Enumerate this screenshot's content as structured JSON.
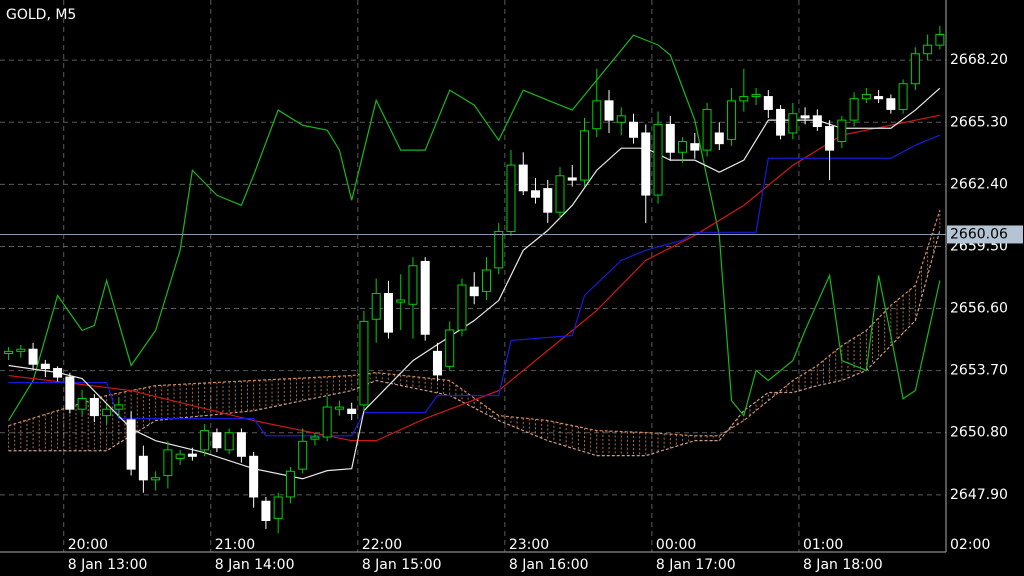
{
  "chart_data": {
    "type": "candlestick",
    "title": "GOLD, M5",
    "xlim": [
      -0.7,
      76.5
    ],
    "ylim": [
      2645.23,
      2671.01
    ],
    "yticks": [
      {
        "value": 2668.2,
        "label": "2668.20"
      },
      {
        "value": 2665.3,
        "label": "2665.30"
      },
      {
        "value": 2662.4,
        "label": "2662.40"
      },
      {
        "value": 2659.5,
        "label": "2659.50"
      },
      {
        "value": 2656.6,
        "label": "2656.60"
      },
      {
        "value": 2653.7,
        "label": "2653.70"
      },
      {
        "value": 2650.8,
        "label": "2650.80"
      },
      {
        "value": 2647.9,
        "label": "2647.90"
      }
    ],
    "xticks": [
      {
        "value": 4.5,
        "label": "20:00"
      },
      {
        "value": 16.5,
        "label": "21:00"
      },
      {
        "value": 28.5,
        "label": "22:00"
      },
      {
        "value": 40.5,
        "label": "23:00"
      },
      {
        "value": 52.5,
        "label": "00:00"
      },
      {
        "value": 64.5,
        "label": "01:00"
      },
      {
        "value": 76.5,
        "label": "02:00"
      }
    ],
    "xticks_date": [
      {
        "value": 4.5,
        "label": "8 Jan 13:00"
      },
      {
        "value": 16.5,
        "label": "8 Jan 14:00"
      },
      {
        "value": 28.5,
        "label": "8 Jan 15:00"
      },
      {
        "value": 40.5,
        "label": "8 Jan 16:00"
      },
      {
        "value": 52.5,
        "label": "8 Jan 17:00"
      },
      {
        "value": 64.5,
        "label": "8 Jan 18:00"
      }
    ],
    "grid": true,
    "current_price": 2660.06,
    "up_color": "#00d000",
    "down_color": "#ffffff",
    "candles": {
      "open": [
        2654.5,
        2654.6,
        2654.7,
        2654.0,
        2653.8,
        2653.4,
        2651.9,
        2652.4,
        2651.6,
        2651.9,
        2651.4,
        2649.7,
        2648.6,
        2648.8,
        2649.6,
        2649.8,
        2650.0,
        2650.8,
        2650.0,
        2650.8,
        2649.7,
        2647.6,
        2646.8,
        2647.8,
        2649.1,
        2650.5,
        2650.6,
        2651.9,
        2651.9,
        2652.1,
        2656.1,
        2657.3,
        2656.9,
        2656.8,
        2658.8,
        2654.6,
        2653.9,
        2655.6,
        2657.6,
        2657.4,
        2658.5,
        2660.2,
        2663.3,
        2662.1,
        2662.2,
        2661.1,
        2662.7,
        2662.6,
        2665.0,
        2666.3,
        2665.3,
        2665.3,
        2664.8,
        2661.9,
        2665.2,
        2663.9,
        2664.3,
        2664.0,
        2664.8,
        2664.5,
        2666.3,
        2666.5,
        2666.5,
        2665.9,
        2664.8,
        2665.6,
        2665.6,
        2665.1,
        2664.4,
        2665.4,
        2666.4,
        2666.5,
        2666.4,
        2665.9,
        2667.1,
        2668.5,
        2668.9
      ],
      "high": [
        2654.8,
        2654.9,
        2655.0,
        2654.2,
        2653.9,
        2653.6,
        2652.8,
        2652.6,
        2652.1,
        2652.4,
        2651.8,
        2650.2,
        2649.0,
        2650.4,
        2650.0,
        2650.1,
        2651.2,
        2651.0,
        2651.0,
        2651.0,
        2649.9,
        2647.8,
        2648.0,
        2649.2,
        2651.0,
        2650.8,
        2652.5,
        2652.3,
        2652.2,
        2656.5,
        2658.0,
        2657.9,
        2658.2,
        2659.0,
        2659.0,
        2655.0,
        2656.0,
        2658.0,
        2658.3,
        2659.0,
        2660.6,
        2664.0,
        2663.9,
        2662.7,
        2662.6,
        2663.2,
        2663.3,
        2665.5,
        2667.8,
        2666.8,
        2666.0,
        2665.7,
        2665.2,
        2665.8,
        2665.6,
        2664.6,
        2664.8,
        2666.2,
        2665.3,
        2666.9,
        2667.8,
        2666.9,
        2666.8,
        2666.1,
        2666.2,
        2666.0,
        2665.9,
        2665.4,
        2665.6,
        2666.7,
        2666.9,
        2666.8,
        2666.6,
        2667.3,
        2668.8,
        2669.4,
        2669.8
      ],
      "low": [
        2654.2,
        2654.3,
        2653.7,
        2653.4,
        2653.2,
        2651.7,
        2651.6,
        2651.3,
        2651.2,
        2651.5,
        2648.8,
        2648.0,
        2648.1,
        2648.2,
        2649.3,
        2649.5,
        2649.7,
        2649.9,
        2649.8,
        2649.4,
        2647.3,
        2646.3,
        2646.1,
        2647.5,
        2648.9,
        2650.2,
        2650.4,
        2651.6,
        2651.4,
        2651.8,
        2655.0,
        2655.2,
        2655.6,
        2655.2,
        2655.1,
        2653.2,
        2653.7,
        2655.3,
        2656.8,
        2657.0,
        2658.2,
        2660.0,
        2661.9,
        2661.5,
        2660.6,
        2660.8,
        2662.3,
        2662.3,
        2664.6,
        2664.8,
        2664.7,
        2664.3,
        2660.6,
        2661.5,
        2663.5,
        2663.4,
        2663.6,
        2663.7,
        2664.0,
        2664.2,
        2665.8,
        2666.1,
        2665.5,
        2664.5,
        2664.5,
        2665.2,
        2664.9,
        2662.6,
        2664.1,
        2665.1,
        2666.2,
        2666.2,
        2665.7,
        2665.7,
        2666.8,
        2668.2,
        2668.7
      ],
      "close": [
        2654.6,
        2654.7,
        2654.0,
        2653.8,
        2653.4,
        2651.9,
        2652.4,
        2651.6,
        2651.9,
        2652.1,
        2649.1,
        2648.6,
        2648.7,
        2650.0,
        2649.8,
        2649.7,
        2650.9,
        2650.1,
        2650.8,
        2649.7,
        2647.8,
        2646.7,
        2647.8,
        2649.0,
        2650.4,
        2650.6,
        2652.0,
        2652.0,
        2651.7,
        2656.0,
        2657.3,
        2655.5,
        2657.0,
        2658.6,
        2655.4,
        2653.5,
        2655.6,
        2657.7,
        2657.2,
        2658.4,
        2660.2,
        2663.3,
        2662.1,
        2661.8,
        2661.1,
        2662.8,
        2662.6,
        2664.9,
        2666.3,
        2665.4,
        2665.6,
        2664.6,
        2661.9,
        2665.2,
        2663.9,
        2664.4,
        2664.0,
        2665.9,
        2664.3,
        2666.3,
        2666.5,
        2666.6,
        2665.9,
        2664.7,
        2665.7,
        2665.5,
        2665.1,
        2664.0,
        2665.4,
        2666.4,
        2666.6,
        2666.4,
        2665.9,
        2667.1,
        2668.5,
        2668.9,
        2669.4
      ]
    },
    "series": [
      {
        "color": "#d08a58",
        "style": "dashed",
        "x": [
          0,
          8,
          12,
          20,
          28,
          30,
          36,
          40,
          44,
          48,
          52,
          56,
          58,
          60,
          62,
          64,
          66,
          68,
          70,
          72,
          74,
          76
        ],
        "values": [
          2651.13,
          2652.54,
          2653.0,
          2653.24,
          2653.47,
          2653.61,
          2653.24,
          2651.6,
          2651.37,
          2650.9,
          2650.81,
          2650.66,
          2650.66,
          2651.37,
          2652.3,
          2653.24,
          2653.94,
          2654.87,
          2655.58,
          2656.75,
          2657.68,
          2661.19
        ]
      },
      {
        "color": "#c89a8a",
        "style": "dashed",
        "x": [
          0,
          8,
          12,
          20,
          28,
          30,
          36,
          40,
          44,
          48,
          52,
          56,
          58,
          60,
          62,
          64,
          66,
          68,
          70,
          72,
          74,
          76
        ],
        "values": [
          2649.96,
          2649.96,
          2651.37,
          2651.83,
          2652.77,
          2653.24,
          2652.54,
          2651.37,
          2650.43,
          2649.73,
          2649.73,
          2650.43,
          2650.43,
          2651.83,
          2652.68,
          2652.68,
          2653.0,
          2653.24,
          2653.71,
          2654.87,
          2656.04,
          2660.25
        ]
      },
      {
        "color": "#18b818",
        "style": "solid",
        "x": [
          0,
          2,
          4,
          6,
          7,
          8,
          10,
          12,
          14,
          15,
          17,
          19,
          20,
          22,
          24,
          26,
          27,
          28,
          30,
          32,
          34,
          36,
          38,
          40,
          42,
          44,
          46,
          48,
          50,
          51,
          53,
          54,
          56,
          58,
          59,
          60,
          61,
          62,
          64,
          65,
          67,
          68,
          70,
          71,
          72,
          73,
          74,
          76
        ],
        "values": [
          2651.37,
          2653.24,
          2657.21,
          2655.58,
          2655.81,
          2657.91,
          2653.94,
          2655.58,
          2659.32,
          2663.06,
          2661.89,
          2661.42,
          2662.83,
          2665.87,
          2665.16,
          2664.93,
          2664.0,
          2661.66,
          2666.33,
          2664.0,
          2664.0,
          2666.8,
          2666.1,
          2664.46,
          2666.8,
          2666.33,
          2665.87,
          2667.27,
          2668.67,
          2669.37,
          2668.91,
          2668.44,
          2665.4,
          2660.02,
          2652.3,
          2651.6,
          2653.71,
          2653.24,
          2654.17,
          2655.58,
          2658.15,
          2654.17,
          2653.71,
          2658.15,
          2655.34,
          2652.39,
          2652.77,
          2657.91
        ]
      },
      {
        "color": "#d01818",
        "style": "solid",
        "x": [
          0,
          10,
          20,
          28,
          30,
          34,
          40,
          44,
          48,
          52,
          56,
          60,
          64,
          68,
          72,
          76
        ],
        "values": [
          2653.47,
          2652.77,
          2651.37,
          2650.43,
          2650.43,
          2651.46,
          2652.77,
          2654.64,
          2656.51,
          2658.85,
          2660.02,
          2661.42,
          2663.29,
          2664.7,
          2665.16,
          2665.63
        ]
      },
      {
        "color": "#1a1ad8",
        "style": "solid",
        "x": [
          0,
          8,
          9,
          20,
          21,
          28,
          29,
          34,
          35,
          40,
          41,
          46,
          47,
          50,
          52,
          55,
          56,
          61,
          62,
          72,
          74,
          76
        ],
        "values": [
          2653.14,
          2653.14,
          2651.46,
          2651.46,
          2650.66,
          2650.66,
          2651.74,
          2651.74,
          2652.54,
          2652.54,
          2655.11,
          2655.34,
          2657.21,
          2658.85,
          2659.32,
          2659.79,
          2660.16,
          2660.16,
          2663.62,
          2663.62,
          2664.23,
          2664.7
        ]
      },
      {
        "color": "#e8e8e8",
        "style": "solid",
        "x": [
          0,
          4,
          6,
          10,
          12,
          16,
          20,
          24,
          26,
          28,
          29,
          33,
          38,
          40,
          42,
          44,
          46,
          48,
          50,
          52,
          54,
          56,
          58,
          60,
          62,
          64,
          66,
          68,
          70,
          72,
          74,
          76
        ],
        "values": [
          2653.94,
          2653.61,
          2653.33,
          2650.99,
          2650.43,
          2649.87,
          2649.12,
          2648.65,
          2649.03,
          2649.12,
          2651.83,
          2654.17,
          2656.04,
          2656.98,
          2659.32,
          2660.25,
          2661.42,
          2663.06,
          2664.09,
          2664.09,
          2663.53,
          2663.53,
          2662.97,
          2663.53,
          2665.4,
          2665.4,
          2665.4,
          2665.02,
          2665.02,
          2665.02,
          2665.87,
          2666.89
        ]
      }
    ]
  }
}
